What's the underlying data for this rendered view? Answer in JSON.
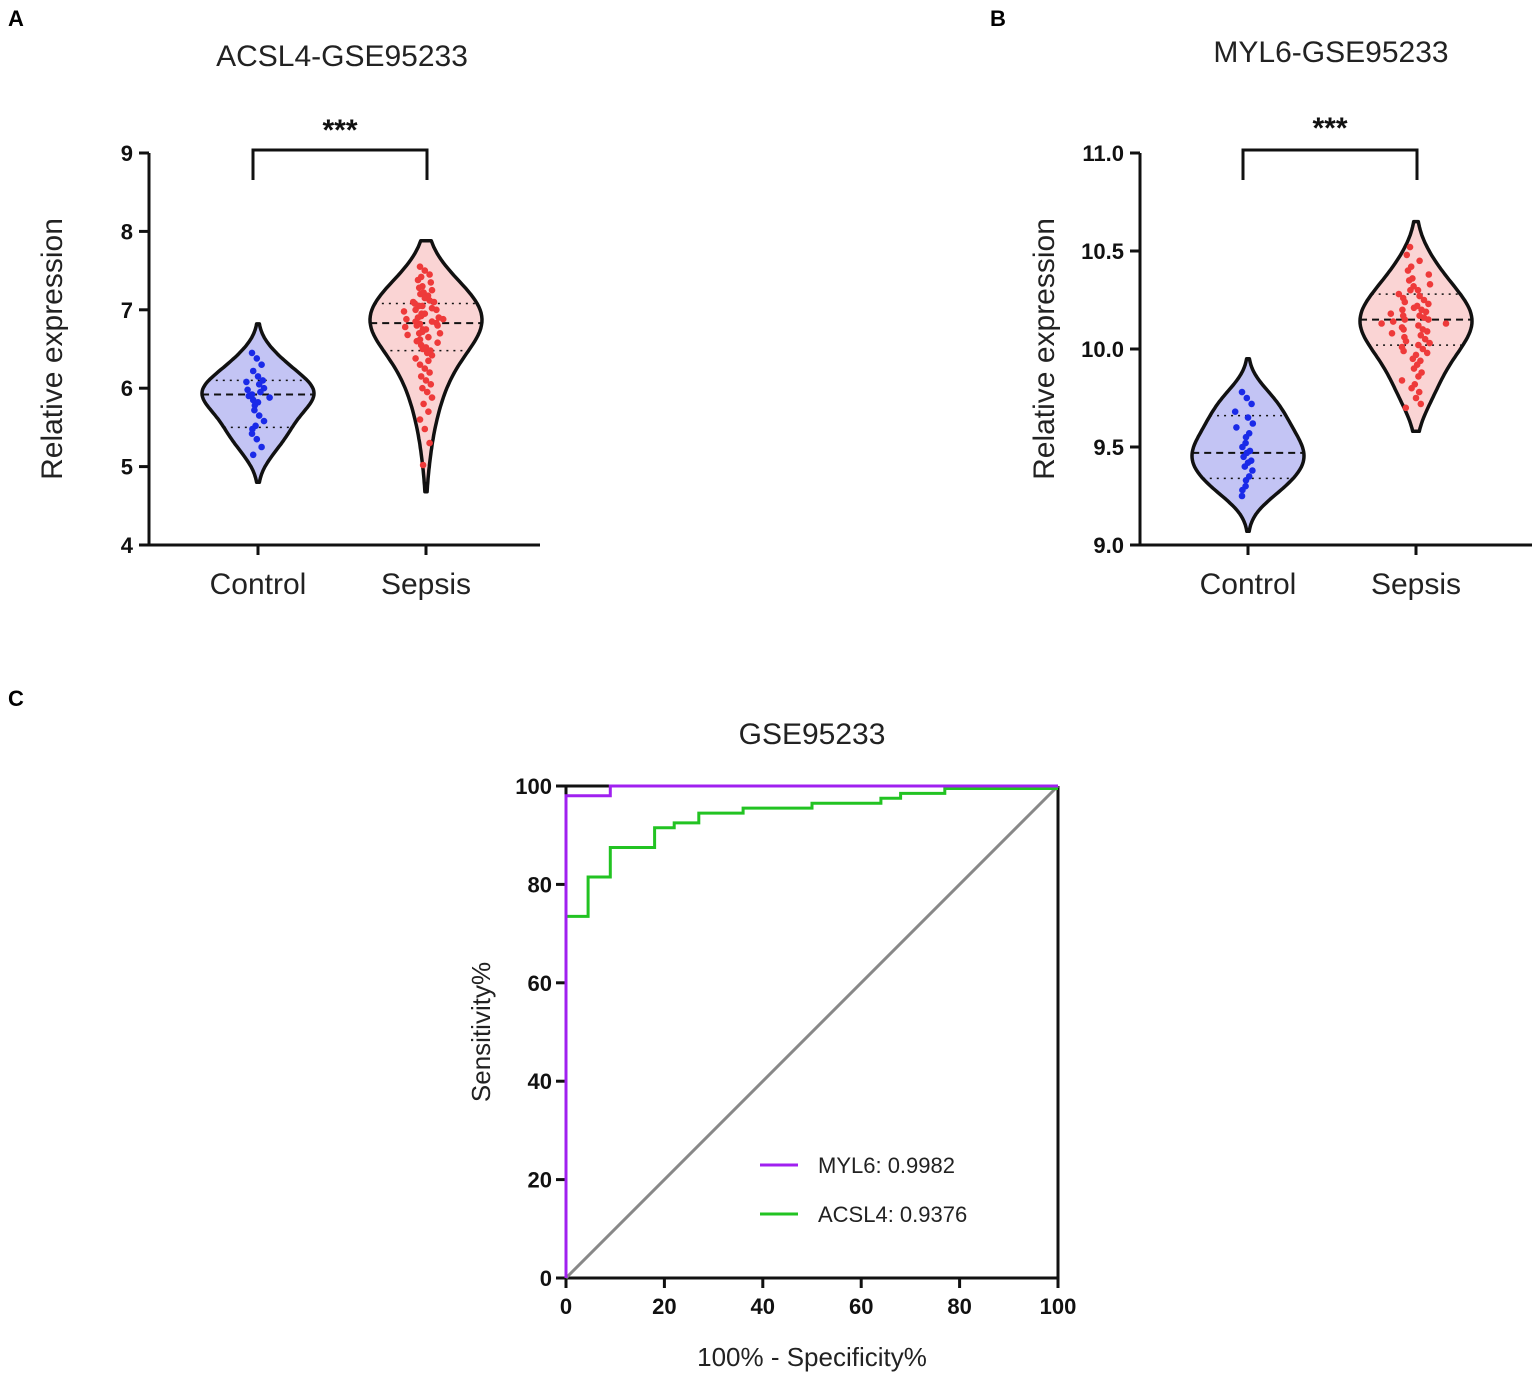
{
  "chart_data": [
    {
      "panel": "A",
      "type": "violin",
      "title": "ACSL4-GSE95233",
      "ylabel": "Relative expression",
      "xlabel": "",
      "ylim": [
        4,
        9
      ],
      "yticks": [
        4,
        5,
        6,
        7,
        8,
        9
      ],
      "ytick_labels": [
        "4",
        "5",
        "6",
        "7",
        "8",
        "9"
      ],
      "categories": [
        "Control",
        "Sepsis"
      ],
      "significance": "***",
      "groups": [
        {
          "name": "Control",
          "fill": "#c3c4f4",
          "point_color": "#1a2ae8",
          "median": 5.92,
          "q1": 5.5,
          "q3": 6.1,
          "min": 4.8,
          "max": 6.82,
          "points": [
            6.45,
            6.38,
            6.3,
            6.22,
            6.15,
            6.1,
            6.08,
            6.05,
            6.0,
            5.98,
            5.95,
            5.92,
            5.9,
            5.88,
            5.85,
            5.82,
            5.78,
            5.72,
            5.65,
            5.58,
            5.52,
            5.48,
            5.42,
            5.35,
            5.25,
            5.15
          ]
        },
        {
          "name": "Sepsis",
          "fill": "#fad4d4",
          "point_color": "#ee3a3a",
          "median": 6.83,
          "q1": 6.48,
          "q3": 7.08,
          "min": 4.68,
          "max": 7.88,
          "points": [
            7.55,
            7.5,
            7.45,
            7.42,
            7.38,
            7.35,
            7.3,
            7.28,
            7.25,
            7.22,
            7.2,
            7.18,
            7.15,
            7.12,
            7.1,
            7.1,
            7.08,
            7.05,
            7.05,
            7.02,
            7.0,
            7.0,
            6.98,
            6.95,
            6.95,
            6.92,
            6.9,
            6.9,
            6.88,
            6.88,
            6.85,
            6.85,
            6.83,
            6.82,
            6.8,
            6.8,
            6.78,
            6.75,
            6.75,
            6.72,
            6.7,
            6.7,
            6.68,
            6.65,
            6.62,
            6.6,
            6.58,
            6.55,
            6.52,
            6.5,
            6.48,
            6.45,
            6.42,
            6.38,
            6.35,
            6.3,
            6.25,
            6.2,
            6.15,
            6.1,
            6.05,
            6.0,
            5.95,
            5.88,
            5.8,
            5.7,
            5.6,
            5.48,
            5.3,
            5.02
          ]
        }
      ]
    },
    {
      "panel": "B",
      "type": "violin",
      "title": "MYL6-GSE95233",
      "ylabel": "Relative expression",
      "xlabel": "",
      "ylim": [
        9.0,
        11.0
      ],
      "yticks": [
        9.0,
        9.5,
        10.0,
        10.5,
        11.0
      ],
      "ytick_labels": [
        "9.0",
        "9.5",
        "10.0",
        "10.5",
        "11.0"
      ],
      "categories": [
        "Control",
        "Sepsis"
      ],
      "significance": "***",
      "groups": [
        {
          "name": "Control",
          "fill": "#c3c4f4",
          "point_color": "#1a2ae8",
          "median": 9.47,
          "q1": 9.34,
          "q3": 9.66,
          "min": 9.07,
          "max": 9.95,
          "points": [
            9.78,
            9.75,
            9.72,
            9.68,
            9.65,
            9.62,
            9.6,
            9.57,
            9.55,
            9.52,
            9.5,
            9.48,
            9.47,
            9.45,
            9.43,
            9.42,
            9.4,
            9.38,
            9.35,
            9.33,
            9.3,
            9.28,
            9.25
          ]
        },
        {
          "name": "Sepsis",
          "fill": "#fad4d4",
          "point_color": "#ee3a3a",
          "median": 10.15,
          "q1": 10.02,
          "q3": 10.28,
          "min": 9.58,
          "max": 10.65,
          "points": [
            10.52,
            10.48,
            10.45,
            10.42,
            10.4,
            10.38,
            10.36,
            10.35,
            10.33,
            10.32,
            10.3,
            10.3,
            10.28,
            10.27,
            10.26,
            10.25,
            10.24,
            10.23,
            10.22,
            10.21,
            10.2,
            10.2,
            10.19,
            10.18,
            10.17,
            10.17,
            10.16,
            10.15,
            10.15,
            10.14,
            10.13,
            10.13,
            10.12,
            10.11,
            10.1,
            10.1,
            10.09,
            10.08,
            10.07,
            10.06,
            10.05,
            10.04,
            10.03,
            10.02,
            10.01,
            10.0,
            9.99,
            9.98,
            9.97,
            9.95,
            9.94,
            9.92,
            9.9,
            9.88,
            9.86,
            9.84,
            9.82,
            9.8,
            9.78,
            9.75,
            9.72,
            9.7
          ]
        }
      ]
    },
    {
      "panel": "C",
      "type": "line",
      "title": "GSE95233",
      "xlabel": "100% - Specificity%",
      "ylabel": "Sensitivity%",
      "xlim": [
        0,
        100
      ],
      "ylim": [
        0,
        100
      ],
      "xticks": [
        0,
        20,
        40,
        60,
        80,
        100
      ],
      "yticks": [
        0,
        20,
        40,
        60,
        80,
        100
      ],
      "series": [
        {
          "name": "MYL6",
          "legend": "MYL6: 0.9982",
          "auc": 0.9982,
          "color": "#a020f0",
          "x": [
            0,
            0,
            9,
            9,
            100
          ],
          "y": [
            0,
            98,
            98,
            100,
            100
          ]
        },
        {
          "name": "ACSL4",
          "legend": "ACSL4: 0.9376",
          "auc": 0.9376,
          "color": "#22c322",
          "x": [
            0,
            0,
            4.5,
            4.5,
            9,
            9,
            18,
            18,
            22,
            22,
            27,
            27,
            36,
            36,
            50,
            50,
            64,
            64,
            68,
            68,
            77,
            77,
            100
          ],
          "y": [
            0,
            73.5,
            73.5,
            81.5,
            81.5,
            87.5,
            87.5,
            91.5,
            91.5,
            92.5,
            92.5,
            94.5,
            94.5,
            95.5,
            95.5,
            96.5,
            96.5,
            97.5,
            97.5,
            98.5,
            98.5,
            99.5,
            99.5
          ]
        },
        {
          "name": "Reference",
          "color": "#888888",
          "x": [
            0,
            100
          ],
          "y": [
            0,
            100
          ]
        }
      ]
    }
  ]
}
